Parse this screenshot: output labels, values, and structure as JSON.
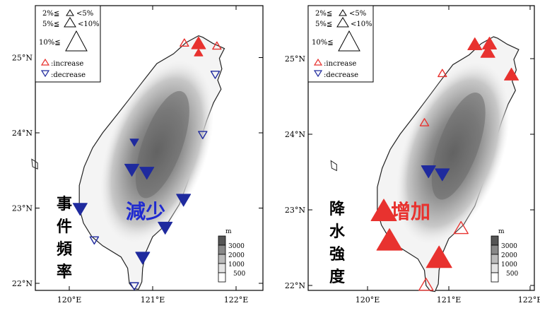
{
  "panels": [
    {
      "id": "left",
      "legend_size": [
        {
          "label": "2%≦",
          "sign": "<5%"
        },
        {
          "label": "5%≦",
          "sign": "<10%"
        },
        {
          "label": "10%≦",
          "sign": ""
        }
      ],
      "legend_trend": [
        {
          "label": ":increase",
          "direction": "increase",
          "color": "#e8322f"
        },
        {
          "label": ":decrease",
          "direction": "decrease",
          "color": "#1f2a9e"
        }
      ],
      "lat_ticks": [
        "25°N",
        "24°N",
        "23°N",
        "22°N"
      ],
      "lon_ticks": [
        "120°E",
        "121°E",
        "122°E"
      ],
      "side_label_chars": [
        "事",
        "件",
        "頻",
        "率"
      ],
      "center_label": "減少",
      "center_label_color": "#1f2ad0",
      "elev_unit": "m",
      "elev_labels": [
        "3000",
        "2000",
        "1000",
        "500"
      ],
      "markers": [
        {
          "dir": "increase",
          "size": "small",
          "filled": false,
          "lon": 121.38,
          "lat": 25.19
        },
        {
          "dir": "increase",
          "size": "medium",
          "filled": true,
          "lon": 121.55,
          "lat": 25.18
        },
        {
          "dir": "increase",
          "size": "small",
          "filled": true,
          "lon": 121.55,
          "lat": 25.06
        },
        {
          "dir": "increase",
          "size": "small",
          "filled": false,
          "lon": 121.77,
          "lat": 25.15
        },
        {
          "dir": "decrease",
          "size": "small",
          "filled": false,
          "lon": 121.75,
          "lat": 24.78
        },
        {
          "dir": "decrease",
          "size": "small",
          "filled": false,
          "lon": 121.6,
          "lat": 23.98
        },
        {
          "dir": "decrease",
          "size": "small",
          "filled": true,
          "lon": 120.78,
          "lat": 23.88
        },
        {
          "dir": "decrease",
          "size": "medium",
          "filled": true,
          "lon": 120.75,
          "lat": 23.52
        },
        {
          "dir": "decrease",
          "size": "medium",
          "filled": true,
          "lon": 120.93,
          "lat": 23.48
        },
        {
          "dir": "decrease",
          "size": "medium",
          "filled": true,
          "lon": 121.37,
          "lat": 23.12
        },
        {
          "dir": "decrease",
          "size": "medium",
          "filled": true,
          "lon": 120.13,
          "lat": 23.0
        },
        {
          "dir": "decrease",
          "size": "medium",
          "filled": true,
          "lon": 121.15,
          "lat": 22.75
        },
        {
          "dir": "decrease",
          "size": "small",
          "filled": false,
          "lon": 120.3,
          "lat": 22.58
        },
        {
          "dir": "decrease",
          "size": "medium",
          "filled": true,
          "lon": 120.88,
          "lat": 22.35
        },
        {
          "dir": "decrease",
          "size": "small",
          "filled": false,
          "lon": 120.78,
          "lat": 21.97
        }
      ]
    },
    {
      "id": "right",
      "legend_size": [
        {
          "label": "2%≦",
          "sign": "<5%"
        },
        {
          "label": "5%≦",
          "sign": "<10%"
        },
        {
          "label": "10%≦",
          "sign": ""
        }
      ],
      "legend_trend": [
        {
          "label": ":increase",
          "direction": "increase",
          "color": "#e8322f"
        },
        {
          "label": ":decrease",
          "direction": "decrease",
          "color": "#1f2a9e"
        }
      ],
      "lat_ticks": [
        "25°N",
        "24°N",
        "23°N",
        "22°N"
      ],
      "lon_ticks": [
        "120°E",
        "121°E",
        "122°E"
      ],
      "side_label_chars": [
        "降",
        "水",
        "強",
        "度"
      ],
      "center_label": "增加",
      "center_label_color": "#e8322f",
      "elev_unit": "m",
      "elev_labels": [
        "3000",
        "2000",
        "1000",
        "500"
      ],
      "markers": [
        {
          "dir": "increase",
          "size": "medium",
          "filled": true,
          "lon": 121.32,
          "lat": 25.18
        },
        {
          "dir": "increase",
          "size": "medium",
          "filled": true,
          "lon": 121.5,
          "lat": 25.19
        },
        {
          "dir": "increase",
          "size": "medium",
          "filled": true,
          "lon": 121.48,
          "lat": 25.08
        },
        {
          "dir": "increase",
          "size": "small",
          "filled": false,
          "lon": 120.92,
          "lat": 24.8
        },
        {
          "dir": "increase",
          "size": "medium",
          "filled": true,
          "lon": 121.77,
          "lat": 24.78
        },
        {
          "dir": "increase",
          "size": "small",
          "filled": false,
          "lon": 120.7,
          "lat": 24.15
        },
        {
          "dir": "decrease",
          "size": "medium",
          "filled": true,
          "lon": 120.75,
          "lat": 23.52
        },
        {
          "dir": "decrease",
          "size": "medium",
          "filled": true,
          "lon": 120.92,
          "lat": 23.48
        },
        {
          "dir": "increase",
          "size": "large",
          "filled": true,
          "lon": 120.2,
          "lat": 22.97
        },
        {
          "dir": "increase",
          "size": "medium",
          "filled": false,
          "lon": 121.15,
          "lat": 22.75
        },
        {
          "dir": "increase",
          "size": "large",
          "filled": true,
          "lon": 120.27,
          "lat": 22.58
        },
        {
          "dir": "increase",
          "size": "large",
          "filled": true,
          "lon": 120.88,
          "lat": 22.35
        },
        {
          "dir": "increase",
          "size": "medium",
          "filled": false,
          "lon": 120.72,
          "lat": 22.0
        }
      ]
    }
  ]
}
